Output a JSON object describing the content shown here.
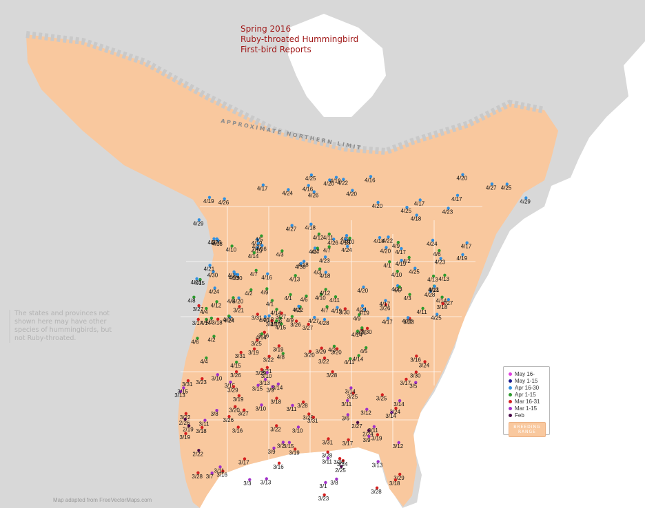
{
  "title": {
    "lines": [
      "Spring 2016",
      "Ruby-throated Hummingbird",
      "First-bird Reports"
    ],
    "color": "#a11919"
  },
  "northern_limit_label": "APPROXIMATE NORTHERN LIMIT",
  "note": {
    "lines": [
      "The states and provinces not",
      "shown here may have other",
      "species of hummingbirds, but",
      "not Ruby-throated."
    ]
  },
  "credit": "Map adapted from FreeVectorMaps.com",
  "legend": {
    "items": [
      {
        "label": "May 16-",
        "color": "#e040e0"
      },
      {
        "label": "May 1-15",
        "color": "#1a1a8c"
      },
      {
        "label": "Apr 16-30",
        "color": "#2f8fe0"
      },
      {
        "label": "Apr 1-15",
        "color": "#2e9a2e"
      },
      {
        "label": "Mar 16-31",
        "color": "#d42020"
      },
      {
        "label": "Mar 1-15",
        "color": "#a030c8"
      },
      {
        "label": "Feb",
        "color": "#4a0a4a"
      }
    ],
    "range_lines": [
      "BREEDING",
      "RANGE"
    ],
    "range_color": "#f9c89e"
  },
  "colors": {
    "land": "#d8d8d8",
    "water": "#ffffff",
    "range": "#f9c89e",
    "borders": "#ffffff"
  },
  "observations": [
    {
      "date": "4/24",
      "period": "apr_16_30"
    },
    {
      "date": "4/24",
      "period": "apr_16_30"
    },
    {
      "date": "4/26",
      "period": "apr_16_30"
    },
    {
      "date": "4/27",
      "period": "apr_16_30"
    },
    {
      "date": "4/18",
      "period": "apr_16_30"
    },
    {
      "date": "4/18",
      "period": "apr_16_30"
    },
    {
      "date": "4/30",
      "period": "apr_16_30"
    },
    {
      "date": "4/19",
      "period": "apr_16_30"
    },
    {
      "date": "4/19",
      "period": "apr_16_30"
    },
    {
      "date": "4/23",
      "period": "apr_16_30"
    },
    {
      "date": "4/26",
      "period": "apr_16_30"
    },
    {
      "date": "4/25",
      "period": "apr_16_30"
    },
    {
      "date": "4/20",
      "period": "apr_16_30"
    },
    {
      "date": "4/24",
      "period": "apr_16_30"
    },
    {
      "date": "4/30",
      "period": "apr_16_30"
    },
    {
      "date": "4/16",
      "period": "apr_16_30"
    },
    {
      "date": "4/29",
      "period": "apr_16_30"
    },
    {
      "date": "4/19",
      "period": "apr_16_30"
    },
    {
      "date": "4/14",
      "period": "apr_1_15"
    },
    {
      "date": "4/17",
      "period": "apr_16_30"
    },
    {
      "date": "4/27",
      "period": "apr_16_30"
    },
    {
      "date": "4/25",
      "period": "apr_16_30"
    },
    {
      "date": "4/23",
      "period": "apr_16_30"
    },
    {
      "date": "4/22",
      "period": "apr_16_30"
    },
    {
      "date": "4/30",
      "period": "apr_16_30"
    },
    {
      "date": "4/20",
      "period": "apr_16_30"
    },
    {
      "date": "4/14",
      "period": "apr_1_15"
    },
    {
      "date": "4/18",
      "period": "apr_16_30"
    },
    {
      "date": "4/22",
      "period": "apr_16_30"
    },
    {
      "date": "3/31",
      "period": "mar_16_31"
    },
    {
      "date": "4/21",
      "period": "apr_16_30"
    },
    {
      "date": "4/10",
      "period": "apr_1_15"
    },
    {
      "date": "4/3",
      "period": "apr_1_15"
    },
    {
      "date": "4/6",
      "period": "apr_1_15"
    },
    {
      "date": "4/7",
      "period": "apr_1_15"
    },
    {
      "date": "4/2",
      "period": "apr_1_15"
    },
    {
      "date": "4/10",
      "period": "apr_1_15"
    },
    {
      "date": "3/29",
      "period": "mar_16_31"
    },
    {
      "date": "3/28",
      "period": "mar_16_31"
    },
    {
      "date": "3/28",
      "period": "mar_16_31"
    },
    {
      "date": "3/22",
      "period": "mar_16_31"
    },
    {
      "date": "3/21",
      "period": "mar_16_31"
    },
    {
      "date": "3/19",
      "period": "mar_16_31"
    },
    {
      "date": "3/17",
      "period": "mar_16_31"
    },
    {
      "date": "3/16",
      "period": "mar_16_31"
    },
    {
      "date": "3/10",
      "period": "mar_1_15"
    },
    {
      "date": "3/2",
      "period": "mar_1_15"
    },
    {
      "date": "3/5",
      "period": "mar_1_15"
    },
    {
      "date": "3/11",
      "period": "mar_1_15"
    },
    {
      "date": "3/15",
      "period": "mar_1_15"
    },
    {
      "date": "2/27",
      "period": "feb"
    },
    {
      "date": "3/3",
      "period": "mar_1_15"
    },
    {
      "date": "3/10",
      "period": "mar_1_15"
    },
    {
      "date": "2/25",
      "period": "feb"
    },
    {
      "date": "3/19",
      "period": "mar_16_31"
    },
    {
      "date": "2/24",
      "period": "feb"
    },
    {
      "date": "2/19",
      "period": "feb"
    },
    {
      "date": "2/26",
      "period": "feb"
    },
    {
      "date": "3/9",
      "period": "mar_1_15"
    },
    {
      "date": "3/16",
      "period": "mar_16_31"
    },
    {
      "date": "2/22",
      "period": "feb"
    },
    {
      "date": "3/11",
      "period": "mar_1_15"
    },
    {
      "date": "3/13",
      "period": "mar_1_15"
    },
    {
      "date": "3/19",
      "period": "mar_16_31"
    },
    {
      "date": "3/11",
      "period": "mar_1_15"
    },
    {
      "date": "3/13",
      "period": "mar_1_15"
    },
    {
      "date": "3/18",
      "period": "mar_16_31"
    },
    {
      "date": "3/11",
      "period": "mar_1_15"
    },
    {
      "date": "3/18",
      "period": "mar_16_31"
    },
    {
      "date": "3/26",
      "period": "mar_16_31"
    },
    {
      "date": "3/25",
      "period": "mar_16_31"
    },
    {
      "date": "3/14",
      "period": "mar_1_15"
    },
    {
      "date": "3/11",
      "period": "mar_1_15"
    },
    {
      "date": "3/22",
      "period": "mar_16_31"
    },
    {
      "date": "3/23",
      "period": "mar_16_31"
    },
    {
      "date": "3/17",
      "period": "mar_16_31"
    },
    {
      "date": "3/25",
      "period": "mar_16_31"
    },
    {
      "date": "3/30",
      "period": "mar_16_31"
    },
    {
      "date": "4/1",
      "period": "apr_1_15"
    },
    {
      "date": "4/11",
      "period": "apr_1_15"
    },
    {
      "date": "4/3",
      "period": "apr_1_15"
    },
    {
      "date": "4/6",
      "period": "apr_1_15"
    },
    {
      "date": "4/18",
      "period": "apr_16_30"
    },
    {
      "date": "4/19",
      "period": "apr_16_30"
    },
    {
      "date": "4/14",
      "period": "apr_1_15"
    },
    {
      "date": "4/22",
      "period": "apr_16_30"
    },
    {
      "date": "4/20",
      "period": "apr_16_30"
    },
    {
      "date": "4/28",
      "period": "apr_16_30"
    },
    {
      "date": "4/19",
      "period": "apr_16_30"
    },
    {
      "date": "4/25",
      "period": "apr_16_30"
    },
    {
      "date": "4/30",
      "period": "apr_16_30"
    },
    {
      "date": "4/28",
      "period": "apr_16_30"
    },
    {
      "date": "4/15",
      "period": "apr_1_15"
    },
    {
      "date": "4/23",
      "period": "apr_16_30"
    },
    {
      "date": "4/17",
      "period": "apr_16_30"
    },
    {
      "date": "4/14",
      "period": "apr_1_15"
    },
    {
      "date": "4/20",
      "period": "apr_16_30"
    },
    {
      "date": "4/17",
      "period": "apr_16_30"
    },
    {
      "date": "4/16",
      "period": "apr_16_30"
    },
    {
      "date": "4/30",
      "period": "apr_16_30"
    },
    {
      "date": "4/20",
      "period": "apr_16_30"
    },
    {
      "date": "4/29",
      "period": "apr_16_30"
    },
    {
      "date": "4/27",
      "period": "apr_16_30"
    },
    {
      "date": "4/19",
      "period": "apr_16_30"
    },
    {
      "date": "4/17",
      "period": "apr_16_30"
    },
    {
      "date": "4/25",
      "period": "apr_16_30"
    },
    {
      "date": "4/13",
      "period": "apr_1_15"
    },
    {
      "date": "4/9",
      "period": "apr_1_15"
    },
    {
      "date": "4/20",
      "period": "apr_16_30"
    },
    {
      "date": "4/18",
      "period": "apr_16_30"
    },
    {
      "date": "4/19",
      "period": "apr_16_30"
    },
    {
      "date": "4/17",
      "period": "apr_16_30"
    },
    {
      "date": "4/16",
      "period": "apr_16_30"
    },
    {
      "date": "4/12",
      "period": "apr_1_15"
    },
    {
      "date": "4/15",
      "period": "apr_1_15"
    },
    {
      "date": "4/9",
      "period": "apr_1_15"
    },
    {
      "date": "4/11",
      "period": "apr_1_15"
    },
    {
      "date": "4/4",
      "period": "apr_1_15"
    },
    {
      "date": "4/2",
      "period": "apr_1_15"
    },
    {
      "date": "3/31",
      "period": "mar_16_31"
    },
    {
      "date": "3/30",
      "period": "mar_16_31"
    },
    {
      "date": "3/28",
      "period": "mar_16_31"
    },
    {
      "date": "3/27",
      "period": "mar_16_31"
    },
    {
      "date": "3/26",
      "period": "mar_16_31"
    },
    {
      "date": "3/19",
      "period": "mar_16_31"
    },
    {
      "date": "3/20",
      "period": "mar_16_31"
    },
    {
      "date": "3/18",
      "period": "mar_16_31"
    },
    {
      "date": "3/17",
      "period": "mar_16_31"
    },
    {
      "date": "3/16",
      "period": "mar_16_31"
    },
    {
      "date": "3/15",
      "period": "mar_1_15"
    },
    {
      "date": "3/14",
      "period": "mar_1_15"
    },
    {
      "date": "3/12",
      "period": "mar_1_15"
    },
    {
      "date": "3/10",
      "period": "mar_1_15"
    },
    {
      "date": "3/8",
      "period": "mar_1_15"
    },
    {
      "date": "3/1",
      "period": "mar_1_15"
    },
    {
      "date": "3/24",
      "period": "mar_16_31"
    },
    {
      "date": "3/22",
      "period": "mar_16_31"
    },
    {
      "date": "3/21",
      "period": "mar_16_31"
    },
    {
      "date": "3/23",
      "period": "mar_16_31"
    },
    {
      "date": "3/29",
      "period": "mar_16_31"
    },
    {
      "date": "3/25",
      "period": "mar_16_31"
    },
    {
      "date": "3/9",
      "period": "mar_1_15"
    },
    {
      "date": "4/5",
      "period": "apr_1_15"
    },
    {
      "date": "4/7",
      "period": "apr_1_15"
    },
    {
      "date": "4/8",
      "period": "apr_1_15"
    },
    {
      "date": "4/10",
      "period": "apr_1_15"
    },
    {
      "date": "4/13",
      "period": "apr_1_15"
    },
    {
      "date": "4/21",
      "period": "apr_16_30"
    },
    {
      "date": "4/24",
      "period": "apr_16_30"
    },
    {
      "date": "4/26",
      "period": "apr_16_30"
    },
    {
      "date": "3/13",
      "period": "mar_1_15"
    },
    {
      "date": "3/31",
      "period": "mar_16_31"
    },
    {
      "date": "3/27",
      "period": "mar_16_31"
    },
    {
      "date": "3/30",
      "period": "mar_16_31"
    },
    {
      "date": "4/2",
      "period": "apr_1_15"
    },
    {
      "date": "4/4",
      "period": "apr_1_15"
    },
    {
      "date": "4/6",
      "period": "apr_1_15"
    },
    {
      "date": "4/1",
      "period": "apr_1_15"
    },
    {
      "date": "3/20",
      "period": "mar_16_31"
    },
    {
      "date": "3/26",
      "period": "mar_16_31"
    },
    {
      "date": "4/9",
      "period": "apr_1_15"
    },
    {
      "date": "4/12",
      "period": "apr_1_15"
    },
    {
      "date": "4/11",
      "period": "apr_1_15"
    },
    {
      "date": "4/8",
      "period": "apr_1_15"
    },
    {
      "date": "4/14",
      "period": "apr_1_15"
    },
    {
      "date": "4/16",
      "period": "apr_16_30"
    },
    {
      "date": "4/18",
      "period": "apr_16_30"
    },
    {
      "date": "4/20",
      "period": "apr_16_30"
    },
    {
      "date": "4/19",
      "period": "apr_16_30"
    },
    {
      "date": "4/27",
      "period": "apr_16_30"
    },
    {
      "date": "4/17",
      "period": "apr_16_30"
    },
    {
      "date": "4/23",
      "period": "apr_16_30"
    },
    {
      "date": "4/25",
      "period": "apr_16_30"
    },
    {
      "date": "4/21",
      "period": "apr_16_30"
    },
    {
      "date": "4/15",
      "period": "apr_1_15"
    },
    {
      "date": "4/13",
      "period": "apr_1_15"
    },
    {
      "date": "4/10",
      "period": "apr_1_15"
    },
    {
      "date": "4/7",
      "period": "apr_1_15"
    },
    {
      "date": "4/5",
      "period": "apr_1_15"
    },
    {
      "date": "4/3",
      "period": "apr_1_15"
    },
    {
      "date": "3/31",
      "period": "mar_16_31"
    },
    {
      "date": "3/28",
      "period": "mar_16_31"
    },
    {
      "date": "3/24",
      "period": "mar_16_31"
    },
    {
      "date": "3/21",
      "period": "mar_16_31"
    },
    {
      "date": "3/18",
      "period": "mar_16_31"
    },
    {
      "date": "3/16",
      "period": "mar_16_31"
    },
    {
      "date": "3/15",
      "period": "mar_1_15"
    },
    {
      "date": "3/14",
      "period": "mar_1_15"
    },
    {
      "date": "3/12",
      "period": "mar_1_15"
    },
    {
      "date": "3/10",
      "period": "mar_1_15"
    },
    {
      "date": "3/8",
      "period": "mar_1_15"
    },
    {
      "date": "3/6",
      "period": "mar_1_15"
    },
    {
      "date": "3/19",
      "period": "mar_16_31"
    },
    {
      "date": "3/17",
      "period": "mar_16_31"
    },
    {
      "date": "3/22",
      "period": "mar_16_31"
    },
    {
      "date": "3/25",
      "period": "mar_16_31"
    },
    {
      "date": "3/27",
      "period": "mar_16_31"
    },
    {
      "date": "3/29",
      "period": "mar_16_31"
    },
    {
      "date": "3/30",
      "period": "mar_16_31"
    },
    {
      "date": "4/1",
      "period": "apr_1_15"
    },
    {
      "date": "4/4",
      "period": "apr_1_15"
    },
    {
      "date": "4/6",
      "period": "apr_1_15"
    },
    {
      "date": "4/9",
      "period": "apr_1_15"
    },
    {
      "date": "4/12",
      "period": "apr_1_15"
    },
    {
      "date": "4/14",
      "period": "apr_1_15"
    },
    {
      "date": "4/16",
      "period": "apr_16_30"
    },
    {
      "date": "4/18",
      "period": "apr_16_30"
    },
    {
      "date": "4/20",
      "period": "apr_16_30"
    },
    {
      "date": "4/22",
      "period": "apr_16_30"
    },
    {
      "date": "4/24",
      "period": "apr_16_30"
    },
    {
      "date": "4/17",
      "period": "apr_16_30"
    },
    {
      "date": "4/15",
      "period": "apr_1_15"
    },
    {
      "date": "4/13",
      "period": "apr_1_15"
    },
    {
      "date": "4/11",
      "period": "apr_1_15"
    },
    {
      "date": "4/8",
      "period": "apr_1_15"
    },
    {
      "date": "4/5",
      "period": "apr_1_15"
    },
    {
      "date": "4/2",
      "period": "apr_1_15"
    },
    {
      "date": "3/31",
      "period": "mar_16_31"
    },
    {
      "date": "3/28",
      "period": "mar_16_31"
    },
    {
      "date": "3/26",
      "period": "mar_16_31"
    },
    {
      "date": "3/23",
      "period": "mar_16_31"
    },
    {
      "date": "3/20",
      "period": "mar_16_31"
    },
    {
      "date": "3/18",
      "period": "mar_16_31"
    },
    {
      "date": "3/16",
      "period": "mar_16_31"
    },
    {
      "date": "3/14",
      "period": "mar_1_15"
    },
    {
      "date": "3/11",
      "period": "mar_1_15"
    },
    {
      "date": "3/9",
      "period": "mar_1_15"
    },
    {
      "date": "3/7",
      "period": "mar_1_15"
    },
    {
      "date": "3/15",
      "period": "mar_1_15"
    },
    {
      "date": "3/13",
      "period": "mar_1_15"
    },
    {
      "date": "3/19",
      "period": "mar_16_31"
    },
    {
      "date": "3/21",
      "period": "mar_16_31"
    },
    {
      "date": "3/24",
      "period": "mar_16_31"
    },
    {
      "date": "3/27",
      "period": "mar_16_31"
    },
    {
      "date": "3/29",
      "period": "mar_16_31"
    },
    {
      "date": "4/1",
      "period": "apr_1_15"
    },
    {
      "date": "4/3",
      "period": "apr_1_15"
    },
    {
      "date": "4/7",
      "period": "apr_1_15"
    },
    {
      "date": "4/10",
      "period": "apr_1_15"
    },
    {
      "date": "4/14",
      "period": "apr_1_15"
    },
    {
      "date": "4/18",
      "period": "apr_16_30"
    },
    {
      "date": "4/21",
      "period": "apr_16_30"
    },
    {
      "date": "4/23",
      "period": "apr_16_30"
    },
    {
      "date": "4/26",
      "period": "apr_16_30"
    },
    {
      "date": "4/17",
      "period": "apr_16_30"
    },
    {
      "date": "4/19",
      "period": "apr_16_30"
    }
  ]
}
